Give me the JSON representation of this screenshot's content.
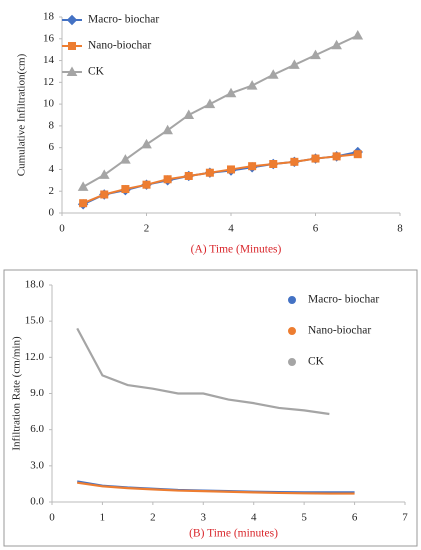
{
  "chart_data": [
    {
      "type": "line",
      "markers": true,
      "x_label": "(A)   Time (Minutes)",
      "y_label": "Cumulative Infiltration(cm)",
      "x": [
        0.5,
        1,
        1.5,
        2,
        2.5,
        3,
        3.5,
        4,
        4.5,
        5,
        5.5,
        6,
        6.5,
        7
      ],
      "xlim": [
        0,
        8
      ],
      "xticks": [
        0,
        2,
        4,
        6,
        8
      ],
      "ylim": [
        0,
        18
      ],
      "yticks": [
        0,
        2,
        4,
        6,
        8,
        10,
        12,
        14,
        16,
        18
      ],
      "grid": false,
      "series": [
        {
          "name": "Macro- biochar",
          "color": "#4472c4",
          "marker": "diamond",
          "values": [
            0.8,
            1.7,
            2.1,
            2.6,
            3.0,
            3.4,
            3.7,
            3.9,
            4.2,
            4.5,
            4.7,
            5.0,
            5.2,
            5.6
          ]
        },
        {
          "name": "Nano-biochar",
          "color": "#ed7d31",
          "marker": "square",
          "values": [
            0.9,
            1.7,
            2.2,
            2.6,
            3.1,
            3.4,
            3.7,
            4.0,
            4.3,
            4.5,
            4.7,
            5.0,
            5.2,
            5.4
          ]
        },
        {
          "name": "CK",
          "color": "#a5a5a5",
          "marker": "triangle",
          "values": [
            2.4,
            3.5,
            4.9,
            6.3,
            7.6,
            9.0,
            10.0,
            11.0,
            11.7,
            12.7,
            13.6,
            14.5,
            15.4,
            16.3
          ]
        }
      ]
    },
    {
      "type": "line",
      "markers": false,
      "x_label": "(B)   Time (minutes)",
      "y_label": "Infiltration Rate (cm/min)",
      "x": [
        0.5,
        1,
        1.5,
        2,
        2.5,
        3,
        3.5,
        4,
        4.5,
        5,
        5.5,
        6
      ],
      "xlim": [
        0,
        7
      ],
      "xticks": [
        0,
        1,
        2,
        3,
        4,
        5,
        6,
        7
      ],
      "ylim": [
        0,
        18
      ],
      "yticks": [
        {
          "value": 0,
          "label": "0.0"
        },
        {
          "value": 3,
          "label": "3.0"
        },
        {
          "value": 6,
          "label": "6.0"
        },
        {
          "value": 9,
          "label": "9.0"
        },
        {
          "value": 12,
          "label": "12.0"
        },
        {
          "value": 15,
          "label": "15.0"
        },
        {
          "value": 18,
          "label": "18.0"
        }
      ],
      "grid": false,
      "series": [
        {
          "name": "Macro- biochar",
          "color": "#4472c4",
          "marker": "circle",
          "values": [
            1.7,
            1.35,
            1.2,
            1.1,
            1.0,
            0.95,
            0.9,
            0.85,
            0.82,
            0.8,
            0.8,
            0.8
          ]
        },
        {
          "name": "Nano-biochar",
          "color": "#ed7d31",
          "marker": "circle",
          "values": [
            1.6,
            1.3,
            1.15,
            1.05,
            0.95,
            0.9,
            0.85,
            0.8,
            0.75,
            0.72,
            0.7,
            0.7
          ]
        },
        {
          "name": "CK",
          "color": "#a5a5a5",
          "marker": "circle",
          "values": [
            14.4,
            10.5,
            9.7,
            9.4,
            9.0,
            9.0,
            8.5,
            8.2,
            7.8,
            7.6,
            7.3,
            null
          ]
        }
      ]
    }
  ]
}
